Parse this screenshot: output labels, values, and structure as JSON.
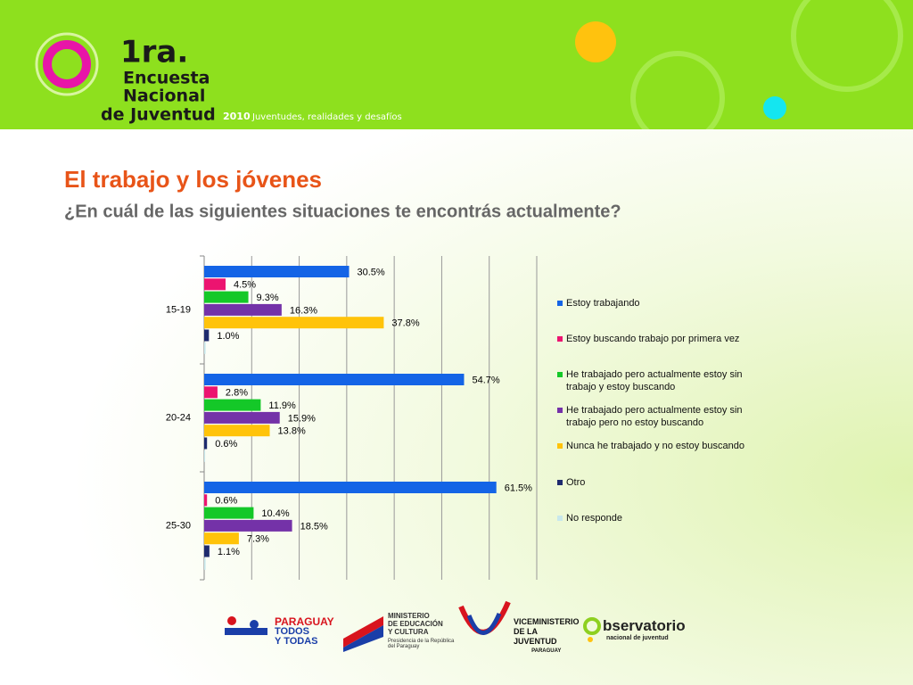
{
  "header": {
    "logo_number": "1ra.",
    "logo_lines": [
      "Encuesta",
      "Nacional",
      "de Juventud"
    ],
    "year": "2010",
    "tagline": "Juventudes, realidades y desafíos"
  },
  "chart_data": {
    "type": "bar",
    "orientation": "horizontal",
    "title": "El trabajo y los jóvenes",
    "subtitle": "¿En cuál de las siguientes situaciones te encontrás actualmente?",
    "categories": [
      "15-19",
      "20-24",
      "25-30"
    ],
    "series": [
      {
        "name": "Estoy trabajando",
        "color": "#1464e6",
        "values": [
          30.5,
          54.7,
          61.5
        ],
        "value_labels": [
          "30.5%",
          "54.7%",
          "61.5%"
        ]
      },
      {
        "name": "Estoy buscando trabajo por primera vez",
        "color": "#ec1470",
        "values": [
          4.5,
          2.8,
          0.6
        ],
        "value_labels": [
          "4.5%",
          "2.8%",
          "0.6%"
        ]
      },
      {
        "name": "He trabajado pero actualmente estoy sin trabajo y estoy buscando",
        "color": "#14c828",
        "values": [
          9.3,
          11.9,
          10.4
        ],
        "value_labels": [
          "9.3%",
          "11.9%",
          "10.4%"
        ]
      },
      {
        "name": "He trabajado pero actualmente estoy sin trabajo pero no estoy buscando",
        "color": "#7432a8",
        "values": [
          16.3,
          15.9,
          18.5
        ],
        "value_labels": [
          "16.3%",
          "15.9%",
          "18.5%"
        ]
      },
      {
        "name": "Nunca he trabajado y no estoy buscando",
        "color": "#ffc30a",
        "values": [
          37.8,
          13.8,
          7.3
        ],
        "value_labels": [
          "37.8%",
          "13.8%",
          "7.3%"
        ]
      },
      {
        "name": "Otro",
        "color": "#1e2a6e",
        "values": [
          1.0,
          0.6,
          1.1
        ],
        "value_labels": [
          "1.0%",
          "0.6%",
          "1.1%"
        ]
      },
      {
        "name": "No responde",
        "color": "#c8e8ec",
        "values": [
          0.3,
          0.2,
          0.3
        ]
      }
    ],
    "xlim": [
      0,
      70
    ],
    "xticks": [
      0,
      10,
      20,
      30,
      40,
      50,
      60,
      70
    ],
    "grid": true,
    "legend": "right"
  },
  "footer": {
    "logo1": [
      "PARAGUAY",
      "TODOS",
      "Y TODAS"
    ],
    "logo2": [
      "MINISTERIO",
      "DE EDUCACIÓN",
      "Y CULTURA",
      "Presidencia de la República del Paraguay"
    ],
    "logo3": [
      "VICEMINISTERIO",
      "DE LA JUVENTUD",
      "PARAGUAY"
    ],
    "logo4": [
      "bservatorio",
      "nacional de juventud"
    ]
  }
}
